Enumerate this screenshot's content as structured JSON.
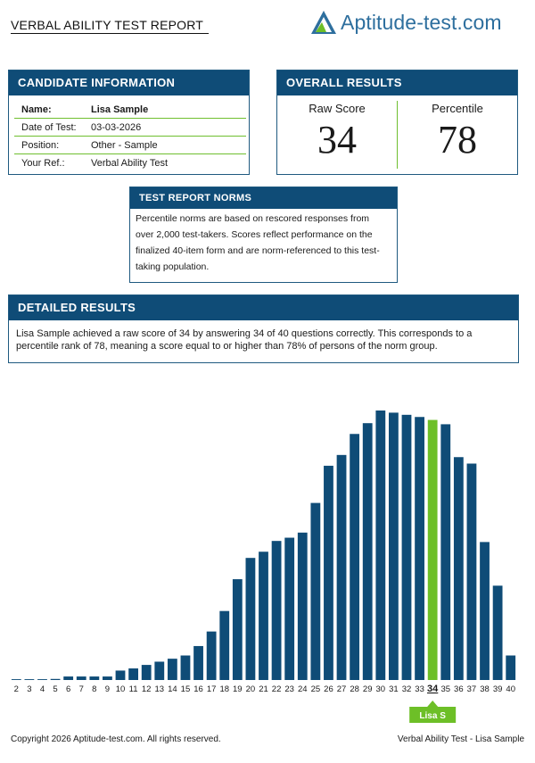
{
  "header": {
    "title": "VERBAL ABILITY TEST REPORT",
    "logo_text": "Aptitude-test.com",
    "logo_icon": "triangle-logo-icon"
  },
  "candidate": {
    "heading": "CANDIDATE INFORMATION",
    "rows": [
      {
        "label": "Name:",
        "value": "Lisa Sample"
      },
      {
        "label": "Date of Test:",
        "value": "03-03-2026"
      },
      {
        "label": "Position:",
        "value": "Other - Sample"
      },
      {
        "label": "Your Ref.:",
        "value": "Verbal Ability Test"
      }
    ]
  },
  "overall": {
    "heading": "OVERALL RESULTS",
    "raw_label": "Raw Score",
    "raw_value": "34",
    "pct_label": "Percentile",
    "pct_value": "78"
  },
  "norms": {
    "heading": "TEST REPORT NORMS",
    "text": "Percentile norms are based on rescored responses from over 2,000 test-takers. Scores reflect performance on the finalized 40-item form and are norm-referenced to this test-taking population."
  },
  "detail": {
    "heading": "DETAILED RESULTS",
    "text": "Lisa Sample achieved a raw score of 34 by answering 34 of 40 questions correctly. This corresponds to a percentile rank of 78, meaning a score equal to or higher than 78% of persons of the norm group."
  },
  "chart_data": {
    "type": "bar",
    "categories": [
      "2",
      "3",
      "4",
      "5",
      "6",
      "7",
      "8",
      "9",
      "10",
      "11",
      "12",
      "13",
      "14",
      "15",
      "16",
      "17",
      "18",
      "19",
      "20",
      "21",
      "22",
      "23",
      "24",
      "25",
      "26",
      "27",
      "28",
      "29",
      "30",
      "31",
      "32",
      "33",
      "34",
      "35",
      "36",
      "37",
      "38",
      "39",
      "40"
    ],
    "values": [
      0.3,
      0.3,
      0.3,
      0.4,
      1.3,
      1.3,
      1.3,
      1.3,
      3.5,
      4.3,
      5.6,
      6.8,
      7.9,
      9.1,
      12.6,
      18.0,
      25.6,
      37.4,
      45.3,
      47.6,
      51.6,
      52.8,
      54.7,
      65.7,
      79.5,
      83.5,
      91.3,
      95.3,
      100,
      99.2,
      98.4,
      97.6,
      96.5,
      94.9,
      82.7,
      80.3,
      51.2,
      35.0,
      9.1
    ],
    "highlight_category": "34",
    "highlight_label": "Lisa S",
    "colors": {
      "bar": "#0f4c77",
      "highlight": "#6dbf27"
    },
    "title": "",
    "xlabel": "",
    "ylabel": ""
  },
  "footer": {
    "left": "Copyright 2026 Aptitude-test.com. All rights reserved.",
    "right": "Verbal Ability Test - Lisa Sample"
  }
}
